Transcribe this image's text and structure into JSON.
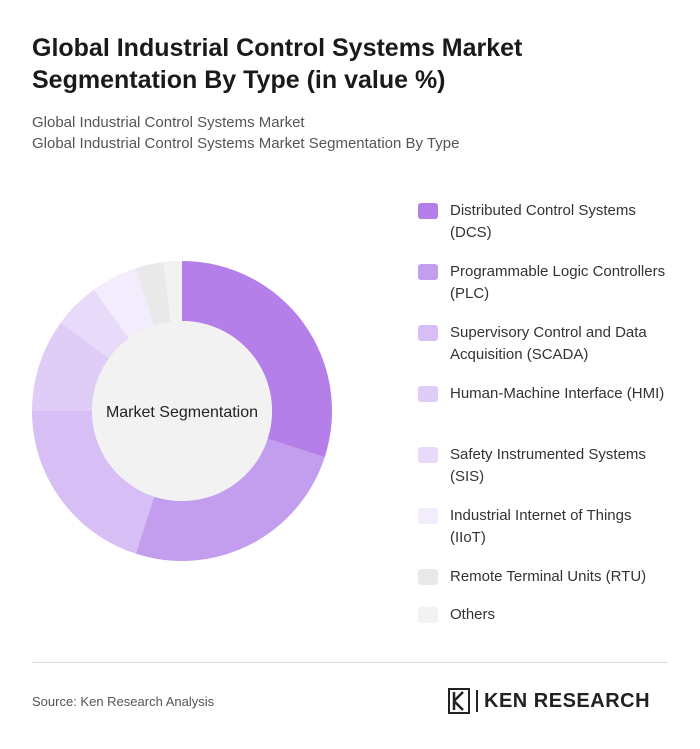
{
  "title": "Global Industrial Control Systems Market Segmentation By Type (in value %)",
  "subtitle1": "Global Industrial Control Systems Market",
  "subtitle2": "Global Industrial Control Systems Market Segmentation By Type",
  "source": "Source: Ken Research Analysis",
  "logo_text": "KEN RESEARCH",
  "chart_data": {
    "type": "pie",
    "variant": "donut",
    "center_label": "Market Segmentation",
    "legend_position": "right",
    "categories": [
      "Distributed Control Systems (DCS)",
      "Programmable Logic Controllers (PLC)",
      "Supervisory Control and Data Acquisition (SCADA)",
      "Human-Machine Interface (HMI)",
      "Safety Instrumented Systems (SIS)",
      "Industrial Internet of Things (IIoT)",
      "Remote Terminal Units (RTU)",
      "Others"
    ],
    "values": [
      30,
      25,
      20,
      10,
      5,
      5,
      3,
      2
    ],
    "colors": [
      "#b57fea",
      "#c49eee",
      "#d7bff5",
      "#e0cdf7",
      "#e8dbf9",
      "#f2ecfc",
      "#e9e9e9",
      "#f2f2f2"
    ]
  }
}
